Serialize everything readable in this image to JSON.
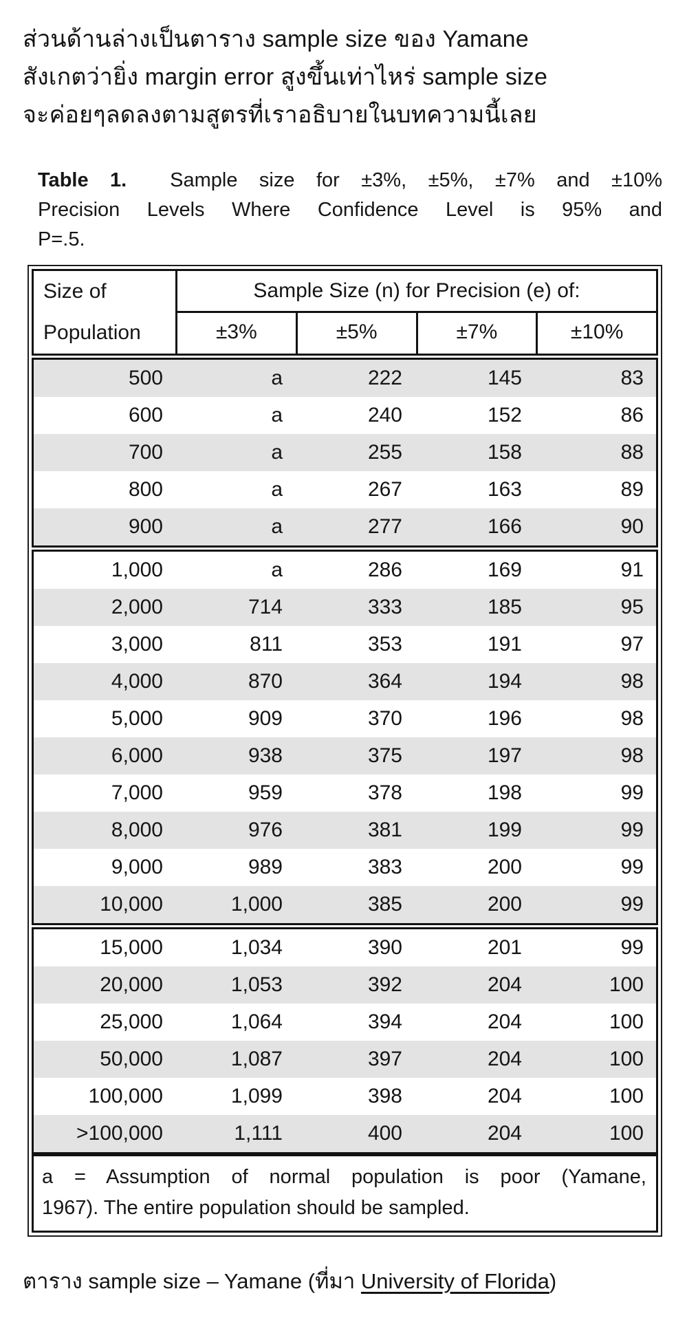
{
  "intro": {
    "line1": "ส่วนด้านล่างเป็นตาราง sample size ของ Yamane",
    "line2": "สังเกตว่ายิ่ง margin error สูงขึ้นเท่าไหร่ sample size",
    "line3": "จะค่อยๆลดลงตามสูตรที่เราอธิบายในบทความนี้เลย"
  },
  "table": {
    "title": {
      "prefix": "Table 1.",
      "line1_rest": "Sample size for ±3%, ±5%, ±7% and ±10%",
      "line2": "Precision Levels Where Confidence Level is 95% and",
      "line3": "P=.5."
    },
    "header": {
      "col1_line1": "Size of",
      "col1_line2": "Population",
      "span": "Sample Size (n) for Precision (e) of:",
      "cols": [
        "±3%",
        "±5%",
        "±7%",
        "±10%"
      ]
    },
    "groups": [
      {
        "first_shaded": true,
        "rows": [
          [
            "500",
            "a",
            "222",
            "145",
            "83"
          ],
          [
            "600",
            "a",
            "240",
            "152",
            "86"
          ],
          [
            "700",
            "a",
            "255",
            "158",
            "88"
          ],
          [
            "800",
            "a",
            "267",
            "163",
            "89"
          ],
          [
            "900",
            "a",
            "277",
            "166",
            "90"
          ]
        ]
      },
      {
        "first_shaded": false,
        "rows": [
          [
            "1,000",
            "a",
            "286",
            "169",
            "91"
          ],
          [
            "2,000",
            "714",
            "333",
            "185",
            "95"
          ],
          [
            "3,000",
            "811",
            "353",
            "191",
            "97"
          ],
          [
            "4,000",
            "870",
            "364",
            "194",
            "98"
          ],
          [
            "5,000",
            "909",
            "370",
            "196",
            "98"
          ],
          [
            "6,000",
            "938",
            "375",
            "197",
            "98"
          ],
          [
            "7,000",
            "959",
            "378",
            "198",
            "99"
          ],
          [
            "8,000",
            "976",
            "381",
            "199",
            "99"
          ],
          [
            "9,000",
            "989",
            "383",
            "200",
            "99"
          ],
          [
            "10,000",
            "1,000",
            "385",
            "200",
            "99"
          ]
        ]
      },
      {
        "first_shaded": false,
        "rows": [
          [
            "15,000",
            "1,034",
            "390",
            "201",
            "99"
          ],
          [
            "20,000",
            "1,053",
            "392",
            "204",
            "100"
          ],
          [
            "25,000",
            "1,064",
            "394",
            "204",
            "100"
          ],
          [
            "50,000",
            "1,087",
            "397",
            "204",
            "100"
          ],
          [
            "100,000",
            "1,099",
            "398",
            "204",
            "100"
          ],
          [
            ">100,000",
            "1,111",
            "400",
            "204",
            "100"
          ]
        ]
      }
    ],
    "footnote": {
      "line1": "a = Assumption of normal population is poor (Yamane,",
      "line2": "1967).  The entire population should be sampled."
    },
    "shaded_row_color": "#e3e3e3",
    "border_color": "#121212"
  },
  "caption": {
    "prefix": "ตาราง sample size – Yamane (ที่มา ",
    "link": "University of Florida",
    "suffix": ")"
  }
}
